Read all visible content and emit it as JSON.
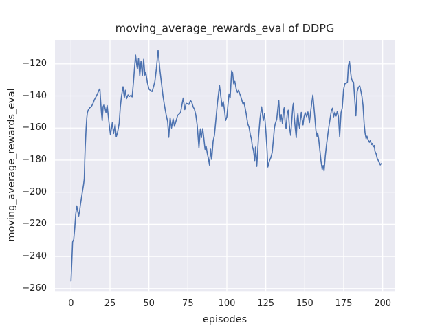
{
  "chart_data": {
    "type": "line",
    "title": "moving_average_rewards_eval of DDPG",
    "xlabel": "episodes",
    "ylabel": "moving_average_rewards_eval",
    "x_ticks": [
      0,
      25,
      50,
      75,
      100,
      125,
      150,
      175,
      200
    ],
    "y_ticks": [
      -120,
      -140,
      -160,
      -180,
      -200,
      -220,
      -240,
      -260
    ],
    "xlim": [
      -10.3,
      208.1
    ],
    "ylim": [
      -261.5,
      -105.1
    ],
    "grid": true,
    "legend_position": "none",
    "colors": {
      "line": "#4c72b0",
      "axes_background": "#eaeaf2",
      "grid": "#ffffff",
      "text": "#262626",
      "figure_background": "#ffffff"
    },
    "series": [
      {
        "name": "moving_average_rewards_eval",
        "color": "#4c72b0",
        "points": [
          [
            0,
            -255.3
          ],
          [
            0.5,
            -243
          ],
          [
            1,
            -231
          ],
          [
            1.3,
            -230.2
          ],
          [
            1.7,
            -229.6
          ],
          [
            2.4,
            -222
          ],
          [
            3,
            -214
          ],
          [
            3.7,
            -208.5
          ],
          [
            4.3,
            -212
          ],
          [
            4.9,
            -214.8
          ],
          [
            5.5,
            -211.5
          ],
          [
            6,
            -208
          ],
          [
            7,
            -201.5
          ],
          [
            8,
            -195.4
          ],
          [
            8.5,
            -191.7
          ],
          [
            8.8,
            -180.3
          ],
          [
            9.1,
            -171.7
          ],
          [
            9.7,
            -160
          ],
          [
            10.1,
            -154
          ],
          [
            10.5,
            -150.5
          ],
          [
            11,
            -148.9
          ],
          [
            12,
            -147.4
          ],
          [
            13,
            -146.7
          ],
          [
            14,
            -144.9
          ],
          [
            15,
            -142.4
          ],
          [
            16,
            -140.6
          ],
          [
            17,
            -138.6
          ],
          [
            18,
            -136.3
          ],
          [
            18.5,
            -135.6
          ],
          [
            19,
            -143
          ],
          [
            19.5,
            -150
          ],
          [
            20,
            -155.4
          ],
          [
            20.6,
            -146.7
          ],
          [
            21.3,
            -145.3
          ],
          [
            22.4,
            -150.3
          ],
          [
            23.2,
            -146
          ],
          [
            24.3,
            -156
          ],
          [
            25.3,
            -164.3
          ],
          [
            26.5,
            -156.7
          ],
          [
            27.3,
            -163.5
          ],
          [
            28.3,
            -158
          ],
          [
            29,
            -165.5
          ],
          [
            29.8,
            -163
          ],
          [
            30.9,
            -157
          ],
          [
            31.6,
            -147
          ],
          [
            32.4,
            -140
          ],
          [
            33.4,
            -134.3
          ],
          [
            34.2,
            -141
          ],
          [
            34.9,
            -136.5
          ],
          [
            35.6,
            -141.7
          ],
          [
            36.6,
            -139.4
          ],
          [
            37.5,
            -140.3
          ],
          [
            38.4,
            -139.6
          ],
          [
            39.2,
            -140.6
          ],
          [
            40,
            -132
          ],
          [
            40.7,
            -123
          ],
          [
            41.4,
            -114.5
          ],
          [
            42.1,
            -120.5
          ],
          [
            42.6,
            -123.1
          ],
          [
            43.3,
            -116.6
          ],
          [
            44.1,
            -127.4
          ],
          [
            44.9,
            -118.4
          ],
          [
            45.8,
            -127.2
          ],
          [
            46.6,
            -117.2
          ],
          [
            47.4,
            -127
          ],
          [
            48,
            -125.4
          ],
          [
            49,
            -131.7
          ],
          [
            50,
            -135.8
          ],
          [
            51,
            -136.6
          ],
          [
            52,
            -137.3
          ],
          [
            53,
            -134
          ],
          [
            53.8,
            -131
          ],
          [
            54.8,
            -123.1
          ],
          [
            55.9,
            -111.5
          ],
          [
            57,
            -123.4
          ],
          [
            58,
            -131.7
          ],
          [
            59,
            -140
          ],
          [
            60,
            -146
          ],
          [
            61,
            -151.5
          ],
          [
            62,
            -156
          ],
          [
            62.7,
            -165.8
          ],
          [
            63.6,
            -153.6
          ],
          [
            64.5,
            -160
          ],
          [
            65.5,
            -154.3
          ],
          [
            66.4,
            -158.9
          ],
          [
            67.4,
            -155.6
          ],
          [
            68.4,
            -152.1
          ],
          [
            69.4,
            -151.3
          ],
          [
            70.3,
            -150.3
          ],
          [
            71.2,
            -145.5
          ],
          [
            72,
            -141.3
          ],
          [
            73,
            -148.5
          ],
          [
            73.9,
            -144.6
          ],
          [
            74.8,
            -144.9
          ],
          [
            75.7,
            -145.3
          ],
          [
            76.6,
            -142.8
          ],
          [
            77.5,
            -144
          ],
          [
            78.4,
            -146.9
          ],
          [
            79.2,
            -148.3
          ],
          [
            80.1,
            -152
          ],
          [
            81,
            -158.3
          ],
          [
            82.1,
            -172.4
          ],
          [
            83,
            -160.5
          ],
          [
            83.7,
            -166
          ],
          [
            84.5,
            -160.4
          ],
          [
            85.2,
            -165.8
          ],
          [
            86,
            -173.3
          ],
          [
            86.7,
            -171.3
          ],
          [
            87.5,
            -176.2
          ],
          [
            88.2,
            -179
          ],
          [
            88.9,
            -183.1
          ],
          [
            89.6,
            -173.2
          ],
          [
            90.3,
            -179.6
          ],
          [
            91.2,
            -168.3
          ],
          [
            92,
            -164.6
          ],
          [
            93,
            -154.6
          ],
          [
            94,
            -144
          ],
          [
            95.3,
            -133.5
          ],
          [
            96.3,
            -141.5
          ],
          [
            96.9,
            -146.3
          ],
          [
            97.7,
            -143.6
          ],
          [
            98.5,
            -149
          ],
          [
            99.2,
            -155.3
          ],
          [
            100,
            -153.1
          ],
          [
            100.8,
            -144.6
          ],
          [
            101.4,
            -138.7
          ],
          [
            102.1,
            -141
          ],
          [
            103.1,
            -124.4
          ],
          [
            103.7,
            -125.6
          ],
          [
            104.4,
            -132.4
          ],
          [
            105.1,
            -130.9
          ],
          [
            106.1,
            -136
          ],
          [
            106.8,
            -137.8
          ],
          [
            107.5,
            -136.5
          ],
          [
            108.2,
            -138.5
          ],
          [
            108.9,
            -140.3
          ],
          [
            109.7,
            -143
          ],
          [
            110.4,
            -145.3
          ],
          [
            111,
            -144
          ],
          [
            111.7,
            -147.4
          ],
          [
            112.4,
            -151
          ],
          [
            113.4,
            -157.4
          ],
          [
            114.3,
            -159.7
          ],
          [
            115,
            -163.9
          ],
          [
            115.8,
            -167
          ],
          [
            116.4,
            -171.7
          ],
          [
            117.1,
            -173.9
          ],
          [
            117.9,
            -180.3
          ],
          [
            118.4,
            -171.9
          ],
          [
            119.2,
            -183.9
          ],
          [
            120.3,
            -166
          ],
          [
            121.3,
            -154
          ],
          [
            122.3,
            -146.8
          ],
          [
            123.4,
            -155.3
          ],
          [
            124.2,
            -151.1
          ],
          [
            125,
            -161.7
          ],
          [
            125.8,
            -174
          ],
          [
            126.3,
            -184.3
          ],
          [
            127.3,
            -180.5
          ],
          [
            128.2,
            -178.5
          ],
          [
            129.1,
            -175.3
          ],
          [
            129.9,
            -166.7
          ],
          [
            130.5,
            -160.3
          ],
          [
            131,
            -157.4
          ],
          [
            132,
            -154.6
          ],
          [
            132.9,
            -146
          ],
          [
            133.3,
            -142.7
          ],
          [
            133.9,
            -152.4
          ],
          [
            134.3,
            -156
          ],
          [
            134.9,
            -151.7
          ],
          [
            135.7,
            -157.4
          ],
          [
            136.4,
            -148.9
          ],
          [
            136.8,
            -147.4
          ],
          [
            137.4,
            -156.7
          ],
          [
            138,
            -160.3
          ],
          [
            138.8,
            -151
          ],
          [
            139.4,
            -148.9
          ],
          [
            140,
            -157.4
          ],
          [
            140.5,
            -161.7
          ],
          [
            141,
            -164.6
          ],
          [
            142.3,
            -146.7
          ],
          [
            142.7,
            -144.6
          ],
          [
            143.3,
            -153.9
          ],
          [
            143.9,
            -160.3
          ],
          [
            144.5,
            -166
          ],
          [
            145.2,
            -153.9
          ],
          [
            145.6,
            -151
          ],
          [
            146.2,
            -157.4
          ],
          [
            146.7,
            -160.3
          ],
          [
            147.3,
            -153.9
          ],
          [
            147.8,
            -150.3
          ],
          [
            148.4,
            -155.3
          ],
          [
            148.9,
            -158.1
          ],
          [
            149.5,
            -153.1
          ],
          [
            150.3,
            -150.5
          ],
          [
            151.2,
            -153
          ],
          [
            152,
            -150
          ],
          [
            153,
            -156.7
          ],
          [
            154,
            -148
          ],
          [
            155.2,
            -139.5
          ],
          [
            156.4,
            -152.5
          ],
          [
            157.2,
            -161.7
          ],
          [
            157.9,
            -165.3
          ],
          [
            158.3,
            -163.1
          ],
          [
            158.9,
            -166.6
          ],
          [
            159.6,
            -173.1
          ],
          [
            160.4,
            -180.3
          ],
          [
            161.2,
            -185.9
          ],
          [
            161.8,
            -183.3
          ],
          [
            162.4,
            -186.7
          ],
          [
            163.2,
            -177.4
          ],
          [
            164,
            -170.3
          ],
          [
            164.8,
            -164
          ],
          [
            165.6,
            -158.3
          ],
          [
            166.4,
            -153.4
          ],
          [
            167.1,
            -149
          ],
          [
            167.8,
            -147.6
          ],
          [
            168.5,
            -153.1
          ],
          [
            169.3,
            -150.2
          ],
          [
            170.1,
            -152.5
          ],
          [
            170.9,
            -149.6
          ],
          [
            171.6,
            -152.9
          ],
          [
            172.4,
            -165.3
          ],
          [
            173.3,
            -150.5
          ],
          [
            174.1,
            -147.4
          ],
          [
            174.9,
            -136
          ],
          [
            175.7,
            -132.4
          ],
          [
            176.6,
            -132.1
          ],
          [
            177.4,
            -131.4
          ],
          [
            178,
            -121
          ],
          [
            178.7,
            -118.6
          ],
          [
            179.4,
            -125
          ],
          [
            179.9,
            -128.9
          ],
          [
            180.6,
            -130.9
          ],
          [
            181.3,
            -131.4
          ],
          [
            182,
            -140.5
          ],
          [
            182.8,
            -152.4
          ],
          [
            183.6,
            -137.5
          ],
          [
            184.4,
            -134.6
          ],
          [
            185.3,
            -133.7
          ],
          [
            186,
            -136.8
          ],
          [
            186.7,
            -140.3
          ],
          [
            187.4,
            -146
          ],
          [
            188.1,
            -157
          ],
          [
            188.7,
            -163
          ],
          [
            189.4,
            -166.7
          ],
          [
            189.9,
            -165.1
          ],
          [
            190.7,
            -167.4
          ],
          [
            191.5,
            -168.9
          ],
          [
            192.1,
            -167.9
          ],
          [
            192.9,
            -170.3
          ],
          [
            193.4,
            -169.6
          ],
          [
            194,
            -171.7
          ],
          [
            194.6,
            -170.9
          ],
          [
            195.1,
            -174.6
          ],
          [
            195.8,
            -176
          ],
          [
            196.5,
            -178.9
          ],
          [
            197.3,
            -180.4
          ],
          [
            197.9,
            -181.7
          ],
          [
            198.5,
            -183
          ],
          [
            199,
            -182.2
          ]
        ]
      }
    ]
  }
}
